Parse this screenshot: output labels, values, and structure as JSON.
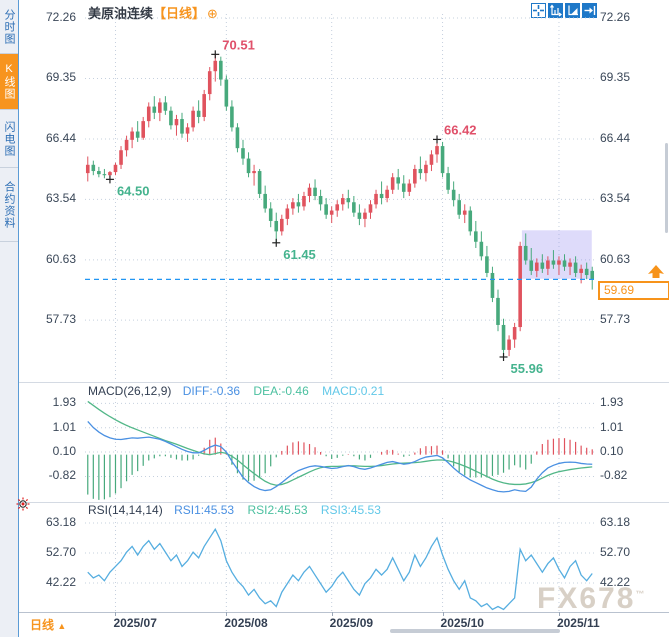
{
  "sidebar": {
    "items": [
      {
        "label": "分时图",
        "active": false
      },
      {
        "label": "K线图",
        "active": true
      },
      {
        "label": "闪电图",
        "active": false
      },
      {
        "label": "合约资料",
        "active": false
      }
    ]
  },
  "header": {
    "title": "美原油连续",
    "period_tag": "【日线】",
    "add_icon": "⊕"
  },
  "toolbar": {
    "icons": [
      "crosshair-pan",
      "axis-zoom",
      "axis-scale",
      "go-to-latest"
    ]
  },
  "macd_header": {
    "params": "MACD(26,12,9)",
    "diff": "DIFF:-0.36",
    "dea": "DEA:-0.46",
    "macd": "MACD:0.21"
  },
  "rsi_header": {
    "params": "RSI(14,14,14)",
    "rsi1": "RSI1:45.53",
    "rsi2": "RSI2:45.53",
    "rsi3": "RSI3:45.53"
  },
  "price_axis": {
    "current_price": "59.69"
  },
  "footer": {
    "period_label": "日线",
    "period_arrow": "▲",
    "watermark": "FX678",
    "watermark_sup": "™"
  },
  "colors": {
    "up": "#e0535e",
    "down": "#47a97c",
    "accent_orange": "#f7931a",
    "accent_blue": "#1e78c8",
    "dashed_line": "#2196f3",
    "grid": "#c5d0de",
    "diff_line": "#4a90e2",
    "dea_line": "#52b788",
    "rsi_line": "#56aee0",
    "label_high": "#e0506a",
    "label_low": "#45b38e",
    "selection": "rgba(145,135,240,0.30)",
    "axis_text": "#3a4758"
  },
  "chart_data": [
    {
      "type": "candlestick",
      "title": "美原油连续 日线",
      "y_ticks": [
        72.26,
        69.35,
        66.44,
        63.54,
        60.63,
        57.73
      ],
      "x_ticks": [
        "2025/07",
        "2025/08",
        "2025/09",
        "2025/10",
        "2025/11"
      ],
      "current_price": 59.69,
      "selection_box": {
        "from_index": 79,
        "to_index": 91,
        "price_top": 62.05,
        "price_bottom": 59.72
      },
      "annotations": [
        {
          "index": 4,
          "price": 64.5,
          "kind": "low",
          "label": "64.50"
        },
        {
          "index": 23,
          "price": 70.51,
          "kind": "high",
          "label": "70.51"
        },
        {
          "index": 34,
          "price": 61.45,
          "kind": "low",
          "label": "61.45"
        },
        {
          "index": 63,
          "price": 66.42,
          "kind": "high",
          "label": "66.42"
        },
        {
          "index": 75,
          "price": 55.96,
          "kind": "low",
          "label": "55.96"
        }
      ],
      "candles": [
        [
          64.8,
          65.6,
          64.4,
          65.2
        ],
        [
          65.2,
          65.4,
          64.7,
          64.9
        ],
        [
          64.9,
          65.1,
          64.6,
          64.75
        ],
        [
          64.75,
          65.0,
          64.55,
          64.7
        ],
        [
          64.7,
          64.9,
          64.5,
          64.85
        ],
        [
          64.85,
          65.3,
          64.7,
          65.2
        ],
        [
          65.2,
          66.1,
          65.0,
          65.9
        ],
        [
          65.9,
          66.6,
          65.6,
          66.4
        ],
        [
          66.4,
          67.0,
          66.0,
          66.8
        ],
        [
          66.8,
          67.3,
          66.3,
          66.5
        ],
        [
          66.5,
          67.5,
          66.4,
          67.3
        ],
        [
          67.3,
          68.2,
          67.0,
          68.0
        ],
        [
          68.0,
          68.5,
          67.4,
          67.7
        ],
        [
          67.7,
          68.4,
          67.3,
          68.2
        ],
        [
          68.2,
          68.5,
          67.6,
          67.8
        ],
        [
          67.8,
          68.0,
          66.9,
          67.1
        ],
        [
          67.1,
          67.6,
          66.6,
          67.4
        ],
        [
          67.4,
          67.7,
          66.5,
          66.7
        ],
        [
          66.7,
          67.2,
          66.3,
          67.0
        ],
        [
          67.0,
          68.0,
          66.8,
          67.8
        ],
        [
          67.8,
          68.3,
          67.2,
          67.5
        ],
        [
          67.5,
          68.8,
          67.3,
          68.6
        ],
        [
          68.6,
          69.9,
          68.3,
          69.7
        ],
        [
          69.7,
          70.51,
          69.2,
          70.2
        ],
        [
          70.2,
          70.4,
          69.0,
          69.3
        ],
        [
          69.3,
          69.5,
          67.8,
          68.0
        ],
        [
          68.0,
          68.3,
          66.8,
          67.0
        ],
        [
          67.0,
          67.2,
          65.8,
          66.0
        ],
        [
          66.0,
          66.4,
          65.2,
          65.5
        ],
        [
          65.5,
          65.8,
          64.6,
          64.8
        ],
        [
          64.8,
          65.2,
          64.2,
          64.9
        ],
        [
          64.9,
          65.0,
          63.6,
          63.8
        ],
        [
          63.8,
          64.2,
          62.9,
          63.1
        ],
        [
          63.1,
          63.4,
          62.2,
          62.5
        ],
        [
          62.5,
          62.9,
          61.45,
          62.0
        ],
        [
          62.0,
          62.8,
          61.8,
          62.6
        ],
        [
          62.6,
          63.3,
          62.3,
          63.1
        ],
        [
          63.1,
          63.6,
          62.8,
          63.4
        ],
        [
          63.4,
          63.8,
          62.9,
          63.2
        ],
        [
          63.2,
          63.9,
          63.0,
          63.7
        ],
        [
          63.7,
          64.3,
          63.4,
          64.1
        ],
        [
          64.1,
          64.5,
          63.5,
          63.7
        ],
        [
          63.7,
          64.0,
          63.0,
          63.3
        ],
        [
          63.3,
          63.6,
          62.6,
          62.8
        ],
        [
          62.8,
          63.2,
          62.4,
          63.0
        ],
        [
          63.0,
          63.5,
          62.7,
          63.3
        ],
        [
          63.3,
          63.8,
          63.0,
          63.6
        ],
        [
          63.6,
          64.0,
          63.1,
          63.4
        ],
        [
          63.4,
          63.7,
          62.7,
          62.9
        ],
        [
          62.9,
          63.3,
          62.3,
          62.6
        ],
        [
          62.6,
          63.1,
          62.2,
          62.9
        ],
        [
          62.9,
          63.5,
          62.6,
          63.3
        ],
        [
          63.3,
          64.0,
          63.1,
          63.8
        ],
        [
          63.8,
          64.4,
          63.3,
          63.6
        ],
        [
          63.6,
          64.2,
          63.4,
          64.0
        ],
        [
          64.0,
          64.8,
          63.8,
          64.6
        ],
        [
          64.6,
          65.0,
          64.0,
          64.3
        ],
        [
          64.3,
          64.7,
          63.6,
          63.9
        ],
        [
          63.9,
          64.5,
          63.7,
          64.3
        ],
        [
          64.3,
          65.2,
          64.1,
          65.0
        ],
        [
          65.0,
          65.6,
          64.5,
          64.8
        ],
        [
          64.8,
          65.4,
          64.4,
          65.2
        ],
        [
          65.2,
          65.9,
          64.9,
          65.7
        ],
        [
          65.7,
          66.42,
          65.3,
          66.1
        ],
        [
          66.1,
          66.3,
          64.6,
          64.8
        ],
        [
          64.8,
          65.1,
          63.8,
          64.0
        ],
        [
          64.0,
          64.4,
          63.2,
          63.5
        ],
        [
          63.5,
          63.8,
          62.6,
          62.8
        ],
        [
          62.8,
          63.3,
          62.4,
          63.0
        ],
        [
          63.0,
          63.2,
          61.8,
          62.0
        ],
        [
          62.0,
          62.5,
          61.2,
          61.5
        ],
        [
          61.5,
          62.0,
          60.6,
          60.8
        ],
        [
          60.8,
          61.3,
          59.8,
          60.0
        ],
        [
          60.0,
          60.3,
          58.6,
          58.8
        ],
        [
          58.8,
          59.2,
          57.2,
          57.5
        ],
        [
          57.5,
          57.8,
          55.96,
          56.3
        ],
        [
          56.3,
          57.0,
          56.0,
          56.8
        ],
        [
          56.8,
          57.6,
          56.4,
          57.4
        ],
        [
          57.4,
          61.5,
          57.2,
          61.3
        ],
        [
          61.3,
          61.9,
          60.4,
          60.6
        ],
        [
          60.6,
          61.2,
          59.9,
          60.1
        ],
        [
          60.1,
          60.7,
          59.8,
          60.5
        ],
        [
          60.5,
          60.9,
          60.0,
          60.2
        ],
        [
          60.2,
          60.8,
          59.9,
          60.6
        ],
        [
          60.6,
          61.1,
          60.2,
          60.4
        ],
        [
          60.4,
          60.8,
          59.9,
          60.6
        ],
        [
          60.6,
          60.9,
          60.1,
          60.3
        ],
        [
          60.3,
          60.7,
          59.9,
          60.5
        ],
        [
          60.5,
          60.8,
          59.8,
          60.0
        ],
        [
          60.0,
          60.4,
          59.5,
          60.2
        ],
        [
          60.2,
          60.5,
          59.7,
          59.9
        ],
        [
          60.1,
          60.3,
          59.2,
          59.69
        ]
      ]
    },
    {
      "type": "macd",
      "params": "MACD(26,12,9)",
      "y_ticks": [
        1.93,
        1.01,
        0.1,
        -0.82
      ],
      "last": {
        "diff": -0.36,
        "dea": -0.46,
        "macd": 0.21
      },
      "diff": [
        1.25,
        1.02,
        0.85,
        0.72,
        0.63,
        0.58,
        0.57,
        0.6,
        0.63,
        0.62,
        0.64,
        0.66,
        0.62,
        0.58,
        0.5,
        0.4,
        0.3,
        0.2,
        0.12,
        0.07,
        0.07,
        0.16,
        0.28,
        0.36,
        0.3,
        0.1,
        -0.25,
        -0.55,
        -0.85,
        -1.05,
        -1.2,
        -1.3,
        -1.35,
        -1.32,
        -1.2,
        -1.05,
        -0.88,
        -0.72,
        -0.6,
        -0.52,
        -0.45,
        -0.42,
        -0.44,
        -0.48,
        -0.52,
        -0.5,
        -0.45,
        -0.41,
        -0.45,
        -0.52,
        -0.55,
        -0.5,
        -0.43,
        -0.36,
        -0.29,
        -0.26,
        -0.31,
        -0.36,
        -0.33,
        -0.26,
        -0.16,
        -0.09,
        -0.06,
        -0.03,
        -0.12,
        -0.3,
        -0.5,
        -0.68,
        -0.82,
        -0.95,
        -1.05,
        -1.15,
        -1.25,
        -1.32,
        -1.38,
        -1.4,
        -1.38,
        -1.32,
        -1.36,
        -1.38,
        -1.22,
        -0.92,
        -0.68,
        -0.5,
        -0.4,
        -0.33,
        -0.29,
        -0.28,
        -0.29,
        -0.33,
        -0.35,
        -0.36
      ],
      "dea": [
        2.0,
        1.85,
        1.7,
        1.56,
        1.43,
        1.31,
        1.2,
        1.1,
        1.01,
        0.93,
        0.85,
        0.77,
        0.69,
        0.61,
        0.53,
        0.46,
        0.39,
        0.31,
        0.23,
        0.16,
        0.09,
        0.03,
        0.0,
        0.04,
        0.09,
        0.05,
        -0.06,
        -0.2,
        -0.38,
        -0.55,
        -0.71,
        -0.86,
        -1.0,
        -1.1,
        -1.15,
        -1.12,
        -1.05,
        -0.95,
        -0.85,
        -0.75,
        -0.65,
        -0.56,
        -0.49,
        -0.45,
        -0.44,
        -0.44,
        -0.43,
        -0.42,
        -0.42,
        -0.43,
        -0.44,
        -0.44,
        -0.43,
        -0.41,
        -0.38,
        -0.35,
        -0.33,
        -0.32,
        -0.31,
        -0.3,
        -0.28,
        -0.25,
        -0.22,
        -0.2,
        -0.2,
        -0.23,
        -0.28,
        -0.35,
        -0.43,
        -0.52,
        -0.62,
        -0.72,
        -0.82,
        -0.92,
        -1.0,
        -1.06,
        -1.1,
        -1.12,
        -1.12,
        -1.1,
        -1.05,
        -0.98,
        -0.88,
        -0.78,
        -0.7,
        -0.64,
        -0.6,
        -0.56,
        -0.53,
        -0.5,
        -0.48,
        -0.46
      ]
    },
    {
      "type": "line",
      "name": "RSI",
      "params": "RSI(14,14,14)",
      "y_ticks": [
        63.18,
        52.7,
        42.22
      ],
      "last": 45.53,
      "values": [
        46,
        44,
        45,
        43,
        46,
        48,
        50,
        53,
        55,
        52,
        55,
        57,
        54,
        56,
        53,
        50,
        52,
        48,
        50,
        53,
        51,
        55,
        58,
        61,
        57,
        50,
        46,
        43,
        41,
        38,
        40,
        37,
        35,
        36,
        34,
        39,
        42,
        45,
        43,
        46,
        48,
        45,
        42,
        39,
        41,
        44,
        46,
        43,
        40,
        38,
        42,
        44,
        47,
        45,
        47,
        51,
        47,
        43,
        46,
        52,
        48,
        51,
        55,
        58,
        52,
        47,
        43,
        40,
        43,
        37,
        36,
        34,
        35,
        33,
        34,
        33,
        35,
        37,
        54,
        50,
        52,
        49,
        46,
        49,
        51,
        47,
        44,
        48,
        50,
        45,
        43,
        45.53
      ]
    }
  ]
}
